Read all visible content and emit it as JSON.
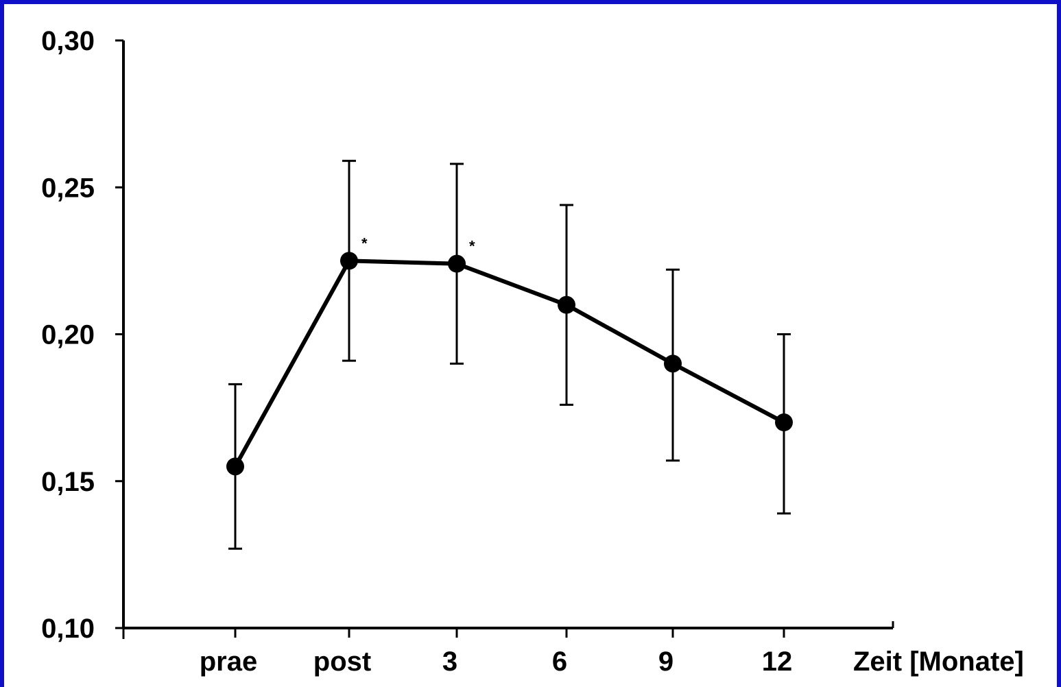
{
  "chart_data": {
    "type": "line",
    "title": "",
    "xlabel": "Zeit [Monate]",
    "ylabel": "",
    "categories": [
      "prae",
      "post",
      "3",
      "6",
      "9",
      "12"
    ],
    "y_ticks": [
      "0,10",
      "0,15",
      "0,20",
      "0,25",
      "0,30"
    ],
    "ylim": [
      0.1,
      0.3
    ],
    "grid": false,
    "series": [
      {
        "values": [
          0.155,
          0.225,
          0.224,
          0.21,
          0.19,
          0.17
        ],
        "error_upper": [
          0.183,
          0.259,
          0.258,
          0.244,
          0.222,
          0.2
        ],
        "error_lower": [
          0.127,
          0.191,
          0.19,
          0.176,
          0.157,
          0.139
        ],
        "significance": [
          "",
          "*",
          "*",
          "",
          "",
          ""
        ]
      }
    ]
  }
}
